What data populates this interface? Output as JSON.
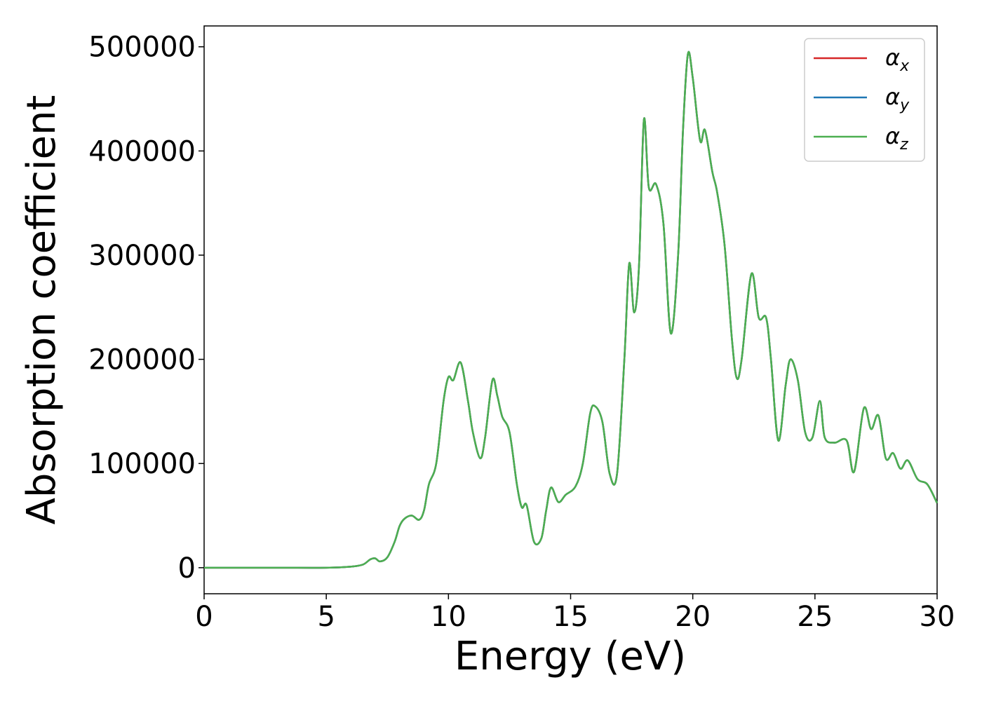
{
  "chart_data": {
    "type": "line",
    "title": "",
    "xlabel": "Energy (eV)",
    "ylabel": "Absorption coefficient",
    "xlim": [
      0,
      30
    ],
    "ylim": [
      -25000,
      520000
    ],
    "x_ticks": [
      0,
      5,
      10,
      15,
      20,
      25,
      30
    ],
    "x_tick_labels": [
      "0",
      "5",
      "10",
      "15",
      "20",
      "25",
      "30"
    ],
    "y_ticks": [
      0,
      100000,
      200000,
      300000,
      400000,
      500000
    ],
    "y_tick_labels": [
      "0",
      "100000",
      "200000",
      "300000",
      "400000",
      "500000"
    ],
    "grid": false,
    "legend_position": "top-right",
    "legend": [
      {
        "symbol": "α",
        "sub": "x",
        "color": "#d62728"
      },
      {
        "symbol": "α",
        "sub": "y",
        "color": "#1f77b4"
      },
      {
        "symbol": "α",
        "sub": "z",
        "color": "#4caf50"
      }
    ],
    "series_points": [
      [
        0,
        0
      ],
      [
        3,
        0
      ],
      [
        5,
        0
      ],
      [
        6,
        1000
      ],
      [
        6.5,
        3000
      ],
      [
        6.8,
        8000
      ],
      [
        7.0,
        9000
      ],
      [
        7.2,
        6000
      ],
      [
        7.5,
        10000
      ],
      [
        7.8,
        25000
      ],
      [
        8.0,
        40000
      ],
      [
        8.2,
        47000
      ],
      [
        8.5,
        50000
      ],
      [
        8.8,
        46000
      ],
      [
        9.0,
        55000
      ],
      [
        9.2,
        80000
      ],
      [
        9.5,
        100000
      ],
      [
        9.8,
        160000
      ],
      [
        10.0,
        183000
      ],
      [
        10.2,
        180000
      ],
      [
        10.5,
        197000
      ],
      [
        10.8,
        160000
      ],
      [
        11.0,
        130000
      ],
      [
        11.3,
        105000
      ],
      [
        11.5,
        125000
      ],
      [
        11.8,
        180000
      ],
      [
        12.0,
        165000
      ],
      [
        12.2,
        145000
      ],
      [
        12.5,
        130000
      ],
      [
        12.8,
        80000
      ],
      [
        13.0,
        58000
      ],
      [
        13.2,
        60000
      ],
      [
        13.5,
        25000
      ],
      [
        13.8,
        28000
      ],
      [
        14.0,
        55000
      ],
      [
        14.2,
        77000
      ],
      [
        14.5,
        63000
      ],
      [
        14.8,
        70000
      ],
      [
        15.2,
        78000
      ],
      [
        15.5,
        100000
      ],
      [
        15.8,
        148000
      ],
      [
        16.0,
        155000
      ],
      [
        16.3,
        140000
      ],
      [
        16.6,
        90000
      ],
      [
        16.9,
        90000
      ],
      [
        17.2,
        200000
      ],
      [
        17.4,
        292000
      ],
      [
        17.6,
        245000
      ],
      [
        17.8,
        290000
      ],
      [
        18.0,
        430000
      ],
      [
        18.2,
        365000
      ],
      [
        18.5,
        368000
      ],
      [
        18.8,
        330000
      ],
      [
        19.1,
        225000
      ],
      [
        19.4,
        300000
      ],
      [
        19.6,
        420000
      ],
      [
        19.8,
        493000
      ],
      [
        20.0,
        470000
      ],
      [
        20.3,
        410000
      ],
      [
        20.5,
        420000
      ],
      [
        20.8,
        380000
      ],
      [
        21.0,
        360000
      ],
      [
        21.3,
        310000
      ],
      [
        21.6,
        220000
      ],
      [
        21.8,
        182000
      ],
      [
        22.0,
        200000
      ],
      [
        22.4,
        282000
      ],
      [
        22.7,
        240000
      ],
      [
        23.0,
        240000
      ],
      [
        23.2,
        200000
      ],
      [
        23.5,
        122000
      ],
      [
        23.8,
        175000
      ],
      [
        24.0,
        200000
      ],
      [
        24.3,
        180000
      ],
      [
        24.6,
        130000
      ],
      [
        24.9,
        125000
      ],
      [
        25.2,
        160000
      ],
      [
        25.4,
        125000
      ],
      [
        25.8,
        120000
      ],
      [
        26.3,
        122000
      ],
      [
        26.6,
        92000
      ],
      [
        27.0,
        153000
      ],
      [
        27.3,
        133000
      ],
      [
        27.6,
        146000
      ],
      [
        27.9,
        105000
      ],
      [
        28.2,
        110000
      ],
      [
        28.5,
        95000
      ],
      [
        28.8,
        103000
      ],
      [
        29.2,
        85000
      ],
      [
        29.6,
        80000
      ],
      [
        30.0,
        62000
      ]
    ]
  }
}
